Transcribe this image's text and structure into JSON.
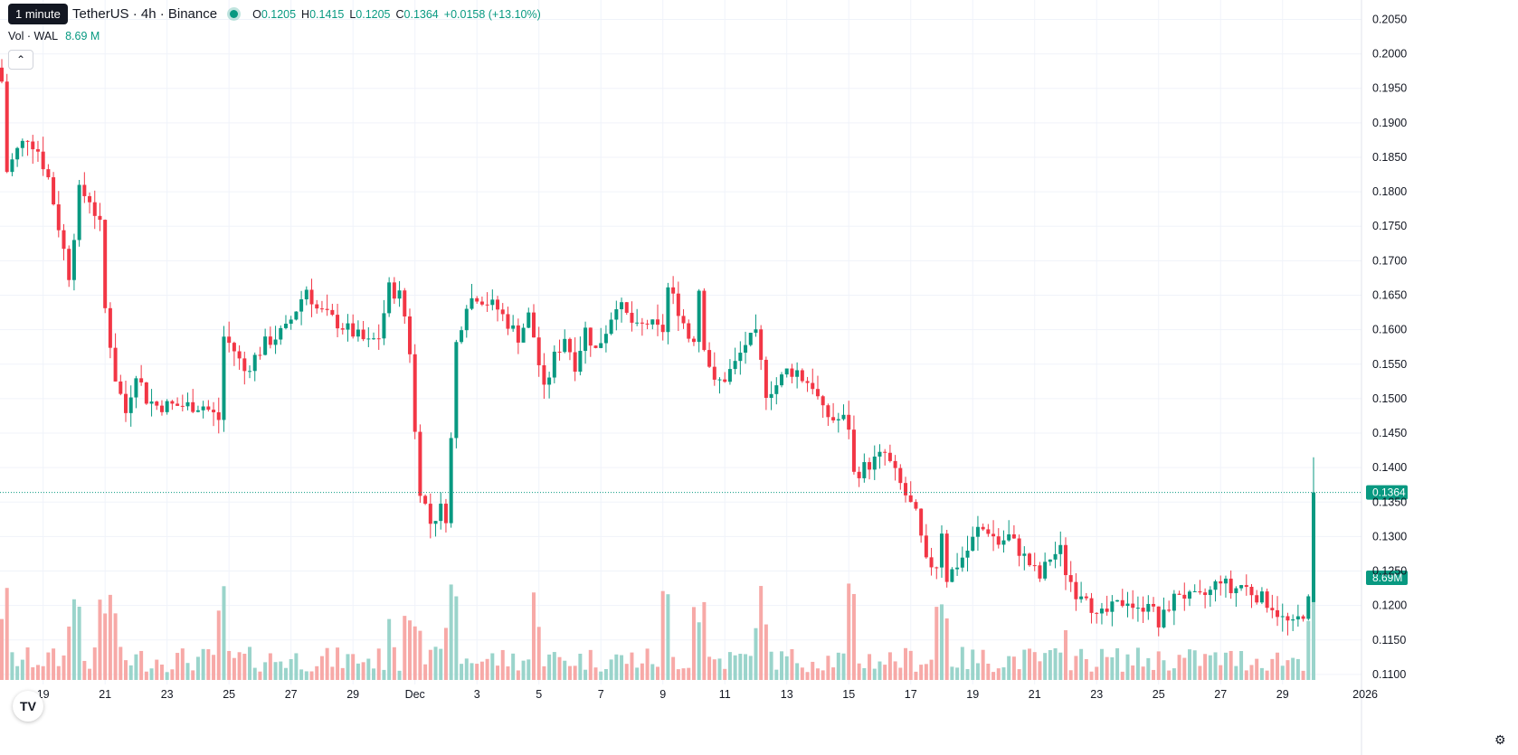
{
  "legend": {
    "title": "TetherUS · 4h · Binance",
    "o_label": "O",
    "o": "0.1205",
    "h_label": "H",
    "h": "0.1415",
    "l_label": "L",
    "l": "0.1205",
    "c_label": "C",
    "c": "0.1364",
    "change": "+0.0158 (+13.10%)"
  },
  "tooltip": "1 minute",
  "volume_legend": {
    "label": "Vol · WAL",
    "value": "8.69 M"
  },
  "collapse_icon": "chevron-up-icon",
  "logo": "TV",
  "colors": {
    "up": "#089981",
    "down": "#f23645",
    "up_vol": "#9ad4cb",
    "down_vol": "#f7a9a7"
  },
  "chart_data": {
    "type": "candlestick",
    "interval": "4h",
    "ylim": [
      0.1075,
      0.2065
    ],
    "y_ticks": [
      "0.1100",
      "0.1150",
      "0.1200",
      "0.1250",
      "0.1300",
      "0.1350",
      "0.1400",
      "0.1450",
      "0.1500",
      "0.1550",
      "0.1600",
      "0.1650",
      "0.1700",
      "0.1750",
      "0.1800",
      "0.1850",
      "0.1900",
      "0.1950",
      "0.2000",
      "0.2050"
    ],
    "x_ticks": [
      {
        "label": "19",
        "index": 8
      },
      {
        "label": "21",
        "index": 20
      },
      {
        "label": "23",
        "index": 32
      },
      {
        "label": "25",
        "index": 44
      },
      {
        "label": "27",
        "index": 56
      },
      {
        "label": "29",
        "index": 68
      },
      {
        "label": "Dec",
        "index": 80
      },
      {
        "label": "3",
        "index": 92
      },
      {
        "label": "5",
        "index": 104
      },
      {
        "label": "7",
        "index": 116
      },
      {
        "label": "9",
        "index": 128
      },
      {
        "label": "11",
        "index": 140
      },
      {
        "label": "13",
        "index": 152
      },
      {
        "label": "15",
        "index": 164
      },
      {
        "label": "17",
        "index": 176
      },
      {
        "label": "19",
        "index": 188
      },
      {
        "label": "21",
        "index": 200
      },
      {
        "label": "23",
        "index": 212
      },
      {
        "label": "25",
        "index": 224
      },
      {
        "label": "27",
        "index": 236
      },
      {
        "label": "29",
        "index": 248
      },
      {
        "label": "2026",
        "index": 264
      }
    ],
    "last_price_label": "0.1364",
    "last_price": 0.1364,
    "volume_label": "8.69M",
    "volume_max": 9.0,
    "anchors": [
      [
        0,
        0.196
      ],
      [
        1,
        0.183
      ],
      [
        3,
        0.186
      ],
      [
        5,
        0.188
      ],
      [
        7,
        0.186
      ],
      [
        9,
        0.182
      ],
      [
        11,
        0.175
      ],
      [
        13,
        0.168
      ],
      [
        15,
        0.18
      ],
      [
        17,
        0.179
      ],
      [
        19,
        0.175
      ],
      [
        20,
        0.163
      ],
      [
        22,
        0.153
      ],
      [
        24,
        0.148
      ],
      [
        26,
        0.154
      ],
      [
        28,
        0.15
      ],
      [
        30,
        0.149
      ],
      [
        33,
        0.149
      ],
      [
        36,
        0.149
      ],
      [
        39,
        0.149
      ],
      [
        42,
        0.147
      ],
      [
        43,
        0.159
      ],
      [
        45,
        0.157
      ],
      [
        47,
        0.154
      ],
      [
        49,
        0.156
      ],
      [
        51,
        0.158
      ],
      [
        53,
        0.159
      ],
      [
        55,
        0.16
      ],
      [
        57,
        0.163
      ],
      [
        59,
        0.166
      ],
      [
        61,
        0.163
      ],
      [
        63,
        0.162
      ],
      [
        65,
        0.161
      ],
      [
        67,
        0.16
      ],
      [
        69,
        0.159
      ],
      [
        71,
        0.158
      ],
      [
        73,
        0.159
      ],
      [
        75,
        0.166
      ],
      [
        77,
        0.165
      ],
      [
        78,
        0.162
      ],
      [
        79,
        0.157
      ],
      [
        80,
        0.145
      ],
      [
        81,
        0.137
      ],
      [
        83,
        0.132
      ],
      [
        85,
        0.134
      ],
      [
        86,
        0.133
      ],
      [
        87,
        0.144
      ],
      [
        88,
        0.158
      ],
      [
        90,
        0.164
      ],
      [
        92,
        0.165
      ],
      [
        94,
        0.164
      ],
      [
        96,
        0.163
      ],
      [
        98,
        0.161
      ],
      [
        100,
        0.159
      ],
      [
        102,
        0.162
      ],
      [
        103,
        0.159
      ],
      [
        105,
        0.151
      ],
      [
        107,
        0.156
      ],
      [
        109,
        0.159
      ],
      [
        111,
        0.155
      ],
      [
        113,
        0.16
      ],
      [
        115,
        0.157
      ],
      [
        117,
        0.16
      ],
      [
        119,
        0.164
      ],
      [
        121,
        0.162
      ],
      [
        123,
        0.16
      ],
      [
        125,
        0.161
      ],
      [
        127,
        0.16
      ],
      [
        128,
        0.16
      ],
      [
        129,
        0.166
      ],
      [
        131,
        0.163
      ],
      [
        133,
        0.159
      ],
      [
        134,
        0.159
      ],
      [
        135,
        0.166
      ],
      [
        136,
        0.158
      ],
      [
        138,
        0.152
      ],
      [
        140,
        0.153
      ],
      [
        142,
        0.155
      ],
      [
        144,
        0.158
      ],
      [
        146,
        0.159
      ],
      [
        148,
        0.151
      ],
      [
        150,
        0.152
      ],
      [
        152,
        0.154
      ],
      [
        154,
        0.154
      ],
      [
        155,
        0.153
      ],
      [
        157,
        0.152
      ],
      [
        159,
        0.148
      ],
      [
        161,
        0.147
      ],
      [
        163,
        0.147
      ],
      [
        164,
        0.146
      ],
      [
        165,
        0.139
      ],
      [
        167,
        0.14
      ],
      [
        169,
        0.141
      ],
      [
        171,
        0.142
      ],
      [
        173,
        0.139
      ],
      [
        175,
        0.136
      ],
      [
        177,
        0.133
      ],
      [
        179,
        0.126
      ],
      [
        181,
        0.126
      ],
      [
        182,
        0.131
      ],
      [
        183,
        0.124
      ],
      [
        185,
        0.126
      ],
      [
        187,
        0.128
      ],
      [
        189,
        0.131
      ],
      [
        191,
        0.131
      ],
      [
        193,
        0.129
      ],
      [
        195,
        0.13
      ],
      [
        197,
        0.128
      ],
      [
        199,
        0.126
      ],
      [
        201,
        0.124
      ],
      [
        203,
        0.127
      ],
      [
        205,
        0.128
      ],
      [
        206,
        0.125
      ],
      [
        208,
        0.122
      ],
      [
        210,
        0.122
      ],
      [
        212,
        0.118
      ],
      [
        214,
        0.119
      ],
      [
        216,
        0.12
      ],
      [
        218,
        0.121
      ],
      [
        220,
        0.119
      ],
      [
        222,
        0.121
      ],
      [
        224,
        0.117
      ],
      [
        226,
        0.12
      ],
      [
        228,
        0.122
      ],
      [
        230,
        0.121
      ],
      [
        232,
        0.121
      ],
      [
        234,
        0.122
      ],
      [
        236,
        0.124
      ],
      [
        238,
        0.122
      ],
      [
        240,
        0.123
      ],
      [
        242,
        0.122
      ],
      [
        244,
        0.121
      ],
      [
        246,
        0.12
      ],
      [
        248,
        0.118
      ],
      [
        250,
        0.117
      ],
      [
        252,
        0.119
      ],
      [
        253,
        0.1205
      ],
      [
        254,
        0.1364
      ]
    ],
    "last_candle": {
      "open": 0.1205,
      "high": 0.1415,
      "low": 0.1205,
      "close": 0.1364,
      "volume": 8.69
    }
  }
}
